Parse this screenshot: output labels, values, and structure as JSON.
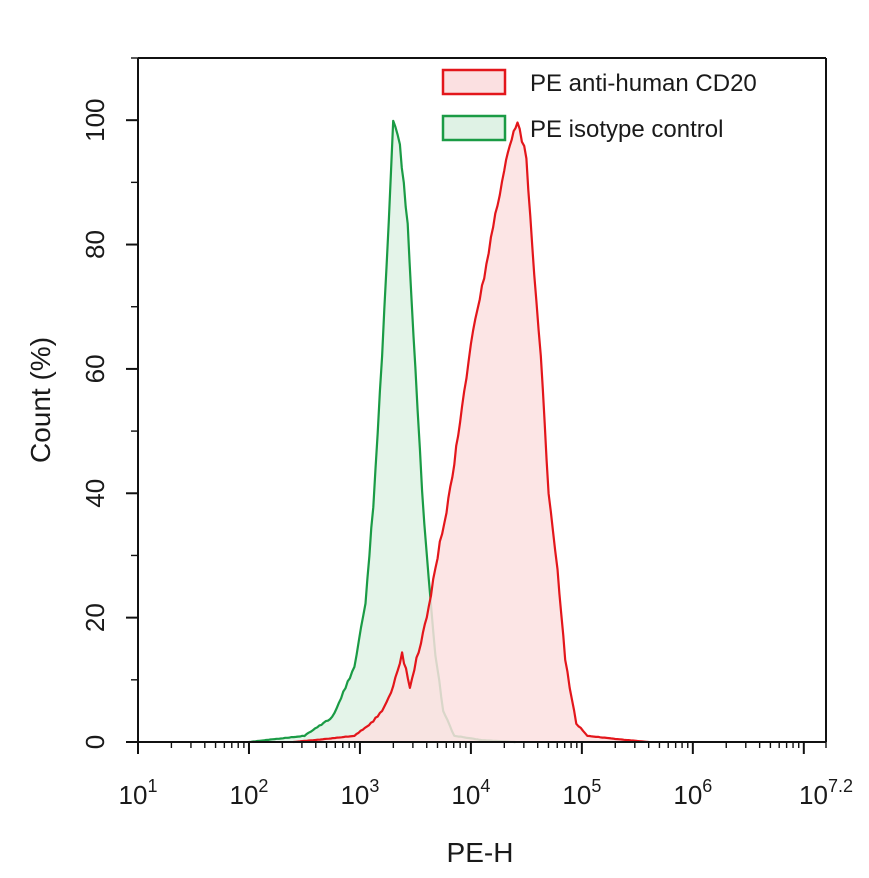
{
  "chart_data": {
    "type": "area",
    "xlabel": "PE-H",
    "ylabel": "Count  (%)",
    "x_scale": "log10",
    "xlim": [
      1,
      7.2
    ],
    "ylim": [
      0,
      110
    ],
    "x_tick_labels": [
      {
        "base": "10",
        "exp": "1"
      },
      {
        "base": "10",
        "exp": "2"
      },
      {
        "base": "10",
        "exp": "3"
      },
      {
        "base": "10",
        "exp": "4"
      },
      {
        "base": "10",
        "exp": "5"
      },
      {
        "base": "10",
        "exp": "6"
      },
      {
        "base": "10",
        "exp": "7.2"
      }
    ],
    "y_ticks": [
      0,
      20,
      40,
      60,
      80,
      100
    ],
    "legend_position": "top-right",
    "series": [
      {
        "name": "PE anti-human CD20",
        "color": "#e3161b",
        "fill": "#fbe0e1",
        "points": [
          [
            2.4,
            0
          ],
          [
            2.7,
            0.5
          ],
          [
            2.95,
            1
          ],
          [
            3.1,
            3
          ],
          [
            3.2,
            5
          ],
          [
            3.3,
            9
          ],
          [
            3.38,
            14
          ],
          [
            3.45,
            9
          ],
          [
            3.55,
            16
          ],
          [
            3.62,
            22
          ],
          [
            3.7,
            30
          ],
          [
            3.78,
            37
          ],
          [
            3.85,
            45
          ],
          [
            3.92,
            54
          ],
          [
            4.0,
            64
          ],
          [
            4.1,
            73
          ],
          [
            4.2,
            83
          ],
          [
            4.3,
            92
          ],
          [
            4.35,
            96
          ],
          [
            4.42,
            100
          ],
          [
            4.5,
            94
          ],
          [
            4.57,
            75
          ],
          [
            4.63,
            62
          ],
          [
            4.7,
            40
          ],
          [
            4.78,
            28
          ],
          [
            4.85,
            13
          ],
          [
            4.95,
            3
          ],
          [
            5.05,
            1
          ],
          [
            5.3,
            0.5
          ],
          [
            5.6,
            0
          ]
        ]
      },
      {
        "name": "PE isotype control",
        "color": "#1a9b45",
        "fill": "#dff2e5",
        "points": [
          [
            2.0,
            0
          ],
          [
            2.25,
            0.5
          ],
          [
            2.5,
            1
          ],
          [
            2.75,
            4
          ],
          [
            2.95,
            12
          ],
          [
            3.05,
            22
          ],
          [
            3.12,
            38
          ],
          [
            3.2,
            62
          ],
          [
            3.26,
            84
          ],
          [
            3.3,
            100
          ],
          [
            3.36,
            96
          ],
          [
            3.43,
            83
          ],
          [
            3.5,
            60
          ],
          [
            3.56,
            40
          ],
          [
            3.62,
            26
          ],
          [
            3.68,
            14
          ],
          [
            3.75,
            5
          ],
          [
            3.85,
            1
          ],
          [
            4.1,
            0.3
          ],
          [
            4.4,
            0
          ]
        ]
      }
    ]
  }
}
